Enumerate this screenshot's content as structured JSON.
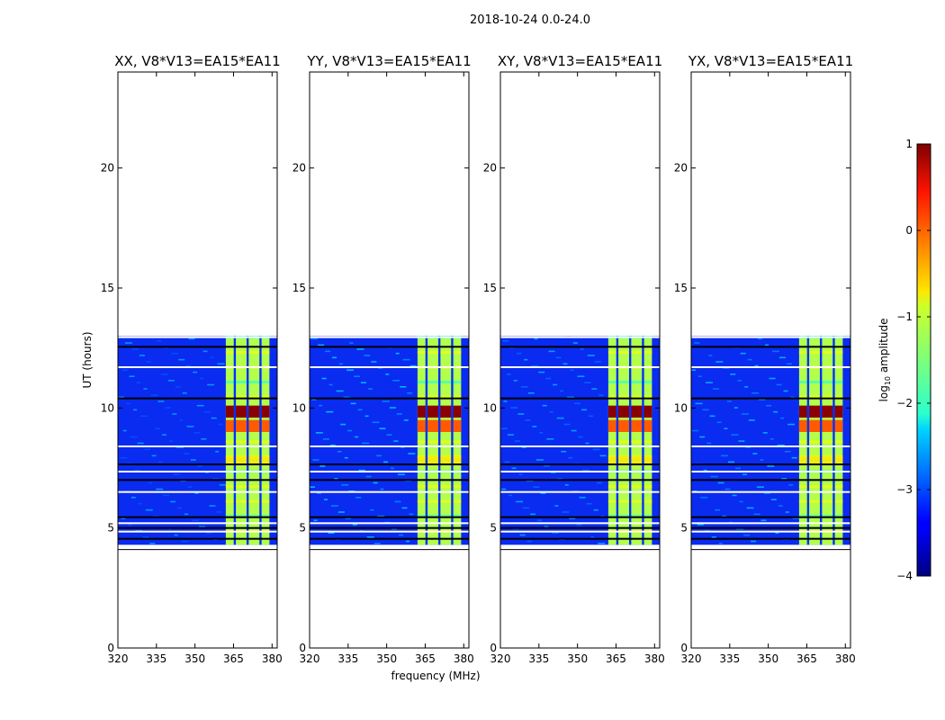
{
  "suptitle": "2018-10-24 0.0-24.0",
  "chart_data": {
    "type": "heatmap",
    "xlabel": "frequency (MHz)",
    "ylabel": "UT (hours)",
    "xlim": [
      320,
      382
    ],
    "ylim": [
      0,
      24
    ],
    "xticks": [
      320,
      335,
      350,
      365,
      380
    ],
    "yticks": [
      0,
      5,
      10,
      15,
      20
    ],
    "data_range_hours": [
      4.3,
      13.0
    ],
    "active_band_mhz": [
      362,
      381
    ],
    "band_gaps_mhz": [
      365.5,
      370.5,
      375.5
    ],
    "strong_rfi_hours": [
      9.6,
      10.1
    ],
    "panels": [
      {
        "title": "XX, V8*V13=EA15*EA11",
        "pol": "XX",
        "band_start_mhz": 362.0,
        "band_end_mhz": 376.5,
        "band_edge_mhz": 381.0
      },
      {
        "title": "YY, V8*V13=EA15*EA11",
        "pol": "YY",
        "band_start_mhz": 362.0,
        "band_end_mhz": 376.5,
        "band_edge_mhz": 381.0
      },
      {
        "title": "XY, V8*V13=EA15*EA11",
        "pol": "XY",
        "band_start_mhz": 362.0,
        "band_end_mhz": 376.5,
        "band_edge_mhz": 381.0
      },
      {
        "title": "YX, V8*V13=EA15*EA11",
        "pol": "YX",
        "band_start_mhz": 362.0,
        "band_end_mhz": 376.5,
        "band_edge_mhz": 381.0
      }
    ],
    "flagged_rows_hours": [
      4.25,
      4.55,
      4.85,
      5.0,
      5.2,
      5.45,
      6.5,
      7.0,
      7.35,
      7.65,
      8.4,
      10.4,
      11.7,
      12.55,
      12.95
    ],
    "colorbar": {
      "label_prefix": "log",
      "label_sub": "10",
      "label_suffix": " amplitude",
      "range": [
        -4,
        1
      ],
      "ticks": [
        1,
        0,
        -1,
        -2,
        -3,
        -4
      ],
      "tick_labels": [
        "1",
        "0",
        "−1",
        "−2",
        "−3",
        "−4"
      ],
      "colormap": "jet"
    }
  }
}
